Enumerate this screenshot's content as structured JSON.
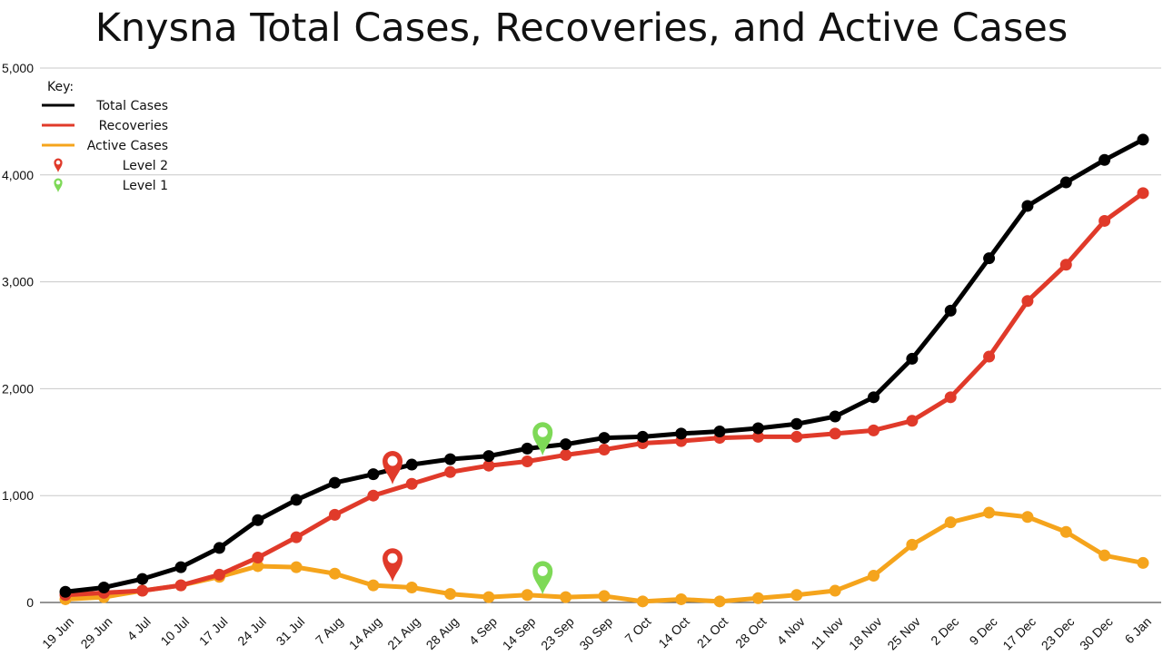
{
  "chart_data": {
    "type": "line",
    "title": "Knysna Total Cases, Recoveries, and Active Cases",
    "categories": [
      "19 Jun",
      "29 Jun",
      "4 Jul",
      "10 Jul",
      "17 Jul",
      "24 Jul",
      "31 Jul",
      "7 Aug",
      "14 Aug",
      "21 Aug",
      "28 Aug",
      "4 Sep",
      "14 Sep",
      "23 Sep",
      "30 Sep",
      "7 Oct",
      "14 Oct",
      "21 Oct",
      "28 Oct",
      "4 Nov",
      "11 Nov",
      "18 Nov",
      "25 Nov",
      "2 Dec",
      "9 Dec",
      "17 Dec",
      "23 Dec",
      "30 Dec",
      "6 Jan"
    ],
    "ylim": [
      0,
      5000
    ],
    "yticks": [
      "0",
      "1,000",
      "2,000",
      "3,000",
      "4,000",
      "5,000"
    ],
    "ytick_values": [
      0,
      1000,
      2000,
      3000,
      4000,
      5000
    ],
    "grid": true,
    "legend_title": "Key:",
    "legend_placement": "top-left",
    "series": [
      {
        "name": "Total Cases",
        "color": "#000000",
        "values": [
          100,
          140,
          220,
          330,
          510,
          770,
          960,
          1120,
          1200,
          1290,
          1340,
          1370,
          1440,
          1480,
          1540,
          1550,
          1580,
          1600,
          1630,
          1670,
          1740,
          1920,
          2280,
          2730,
          3220,
          3710,
          3930,
          4140,
          4330
        ]
      },
      {
        "name": "Recoveries",
        "color": "#e03a2a",
        "values": [
          70,
          90,
          110,
          160,
          260,
          420,
          610,
          820,
          1000,
          1110,
          1220,
          1280,
          1320,
          1380,
          1430,
          1490,
          1510,
          1540,
          1550,
          1550,
          1580,
          1610,
          1700,
          1920,
          2300,
          2820,
          3160,
          3570,
          3830
        ]
      },
      {
        "name": "Active Cases",
        "color": "#f5a41c",
        "values": [
          30,
          50,
          110,
          160,
          240,
          340,
          330,
          270,
          160,
          140,
          80,
          50,
          70,
          50,
          60,
          10,
          30,
          10,
          40,
          70,
          110,
          250,
          540,
          750,
          840,
          800,
          660,
          440,
          370
        ]
      }
    ],
    "annotations": [
      {
        "label": "Level 2",
        "color": "#e03a2a",
        "category": "14 Aug",
        "offset": 0.5,
        "y_values": [
          1290,
          380
        ]
      },
      {
        "label": "Level 1",
        "color": "#7ed957",
        "category": "14 Sep",
        "offset": 0.4,
        "y_values": [
          1560,
          260
        ]
      }
    ]
  }
}
